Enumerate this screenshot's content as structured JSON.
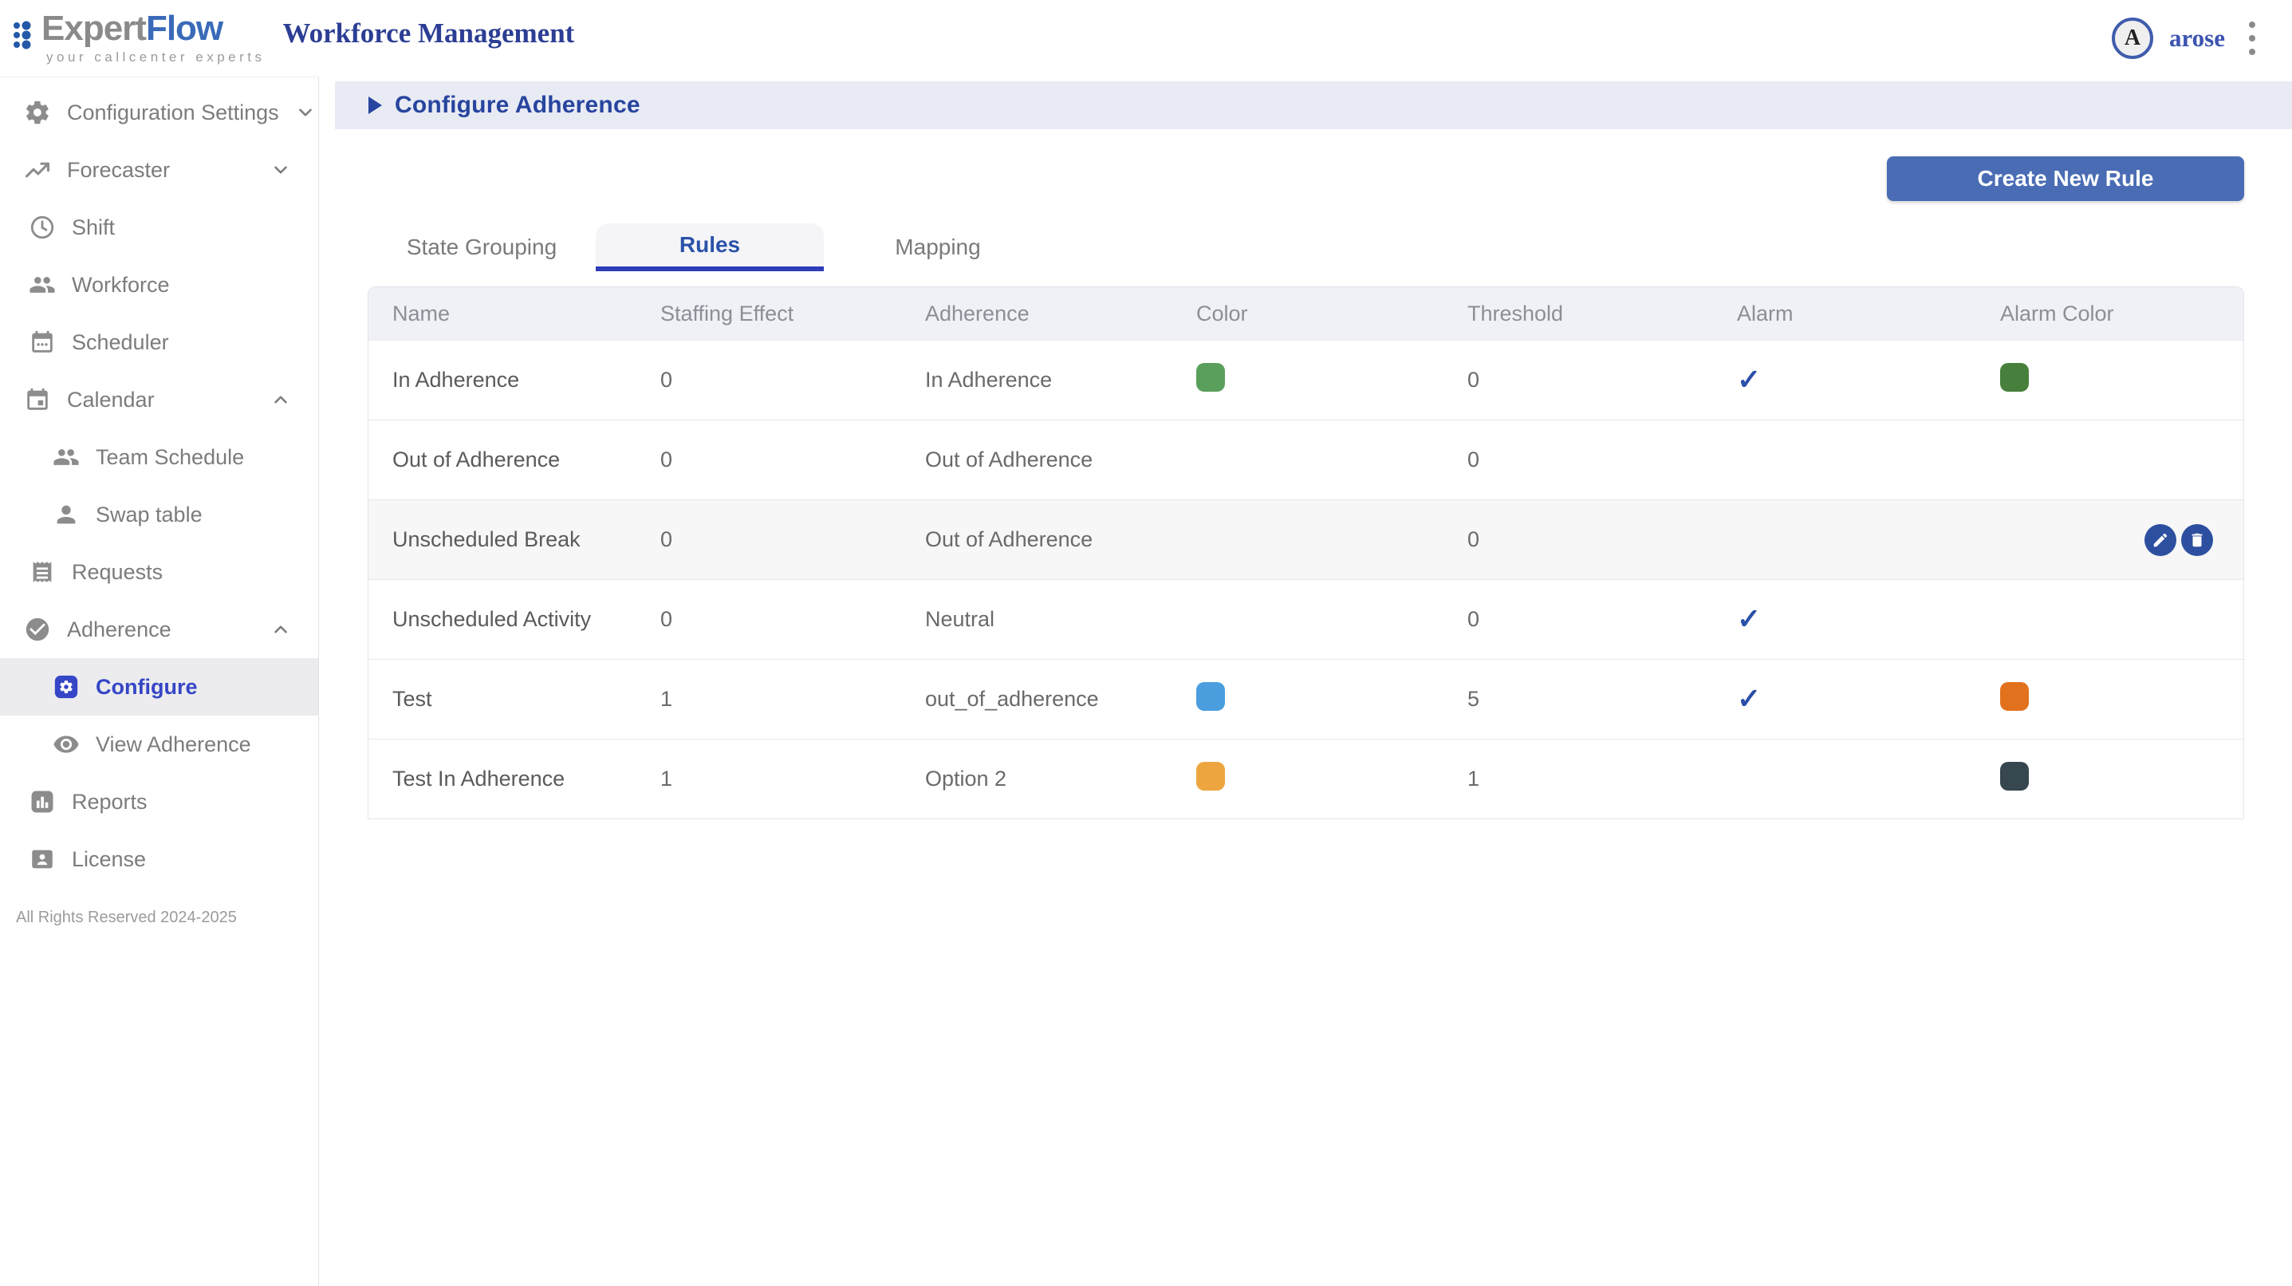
{
  "header": {
    "logo": {
      "expert": "Expert",
      "flow": "Flow",
      "tagline": "your callcenter experts"
    },
    "app_title": "Workforce Management",
    "user": {
      "initial": "A",
      "name": "arose"
    }
  },
  "sidebar": {
    "items": [
      {
        "label": "Configuration Settings",
        "icon": "gear",
        "level": 0,
        "chevron": "down",
        "active": false
      },
      {
        "label": "Forecaster",
        "icon": "trending-up",
        "level": 0,
        "chevron": "down",
        "active": false
      },
      {
        "label": "Shift",
        "icon": "clock",
        "level": 1,
        "chevron": null,
        "active": false
      },
      {
        "label": "Workforce",
        "icon": "people",
        "level": 1,
        "chevron": null,
        "active": false
      },
      {
        "label": "Scheduler",
        "icon": "calendar-dots",
        "level": 1,
        "chevron": null,
        "active": false
      },
      {
        "label": "Calendar",
        "icon": "calendar-square",
        "level": 0,
        "chevron": "up",
        "active": false
      },
      {
        "label": "Team Schedule",
        "icon": "people",
        "level": 2,
        "chevron": null,
        "active": false
      },
      {
        "label": "Swap table",
        "icon": "person",
        "level": 2,
        "chevron": null,
        "active": false
      },
      {
        "label": "Requests",
        "icon": "receipt",
        "level": 1,
        "chevron": null,
        "active": false
      },
      {
        "label": "Adherence",
        "icon": "check-circle",
        "level": 0,
        "chevron": "up",
        "active": false
      },
      {
        "label": "Configure",
        "icon": "gear-square",
        "level": 2,
        "chevron": null,
        "active": true
      },
      {
        "label": "View Adherence",
        "icon": "eye",
        "level": 2,
        "chevron": null,
        "active": false
      },
      {
        "label": "Reports",
        "icon": "bar-chart",
        "level": 1,
        "chevron": null,
        "active": false
      },
      {
        "label": "License",
        "icon": "badge",
        "level": 1,
        "chevron": null,
        "active": false
      }
    ],
    "footer": "All Rights Reserved 2024-2025"
  },
  "band": {
    "title": "Configure Adherence"
  },
  "toolbar": {
    "create_button": "Create New Rule"
  },
  "tabs": [
    {
      "label": "State Grouping",
      "active": false
    },
    {
      "label": "Rules",
      "active": true
    },
    {
      "label": "Mapping",
      "active": false
    }
  ],
  "table": {
    "columns": [
      "Name",
      "Staffing Effect",
      "Adherence",
      "Color",
      "Threshold",
      "Alarm",
      "Alarm Color"
    ],
    "rows": [
      {
        "name": "In Adherence",
        "staffing_effect": "0",
        "adherence": "In Adherence",
        "color": "#5aa05c",
        "threshold": "0",
        "alarm": true,
        "alarm_color": "#47803c",
        "actions": false,
        "highlighted": false
      },
      {
        "name": "Out of Adherence",
        "staffing_effect": "0",
        "adherence": "Out of Adherence",
        "color": "",
        "threshold": "0",
        "alarm": false,
        "alarm_color": "",
        "actions": false,
        "highlighted": false
      },
      {
        "name": "Unscheduled Break",
        "staffing_effect": "0",
        "adherence": "Out of Adherence",
        "color": "",
        "threshold": "0",
        "alarm": false,
        "alarm_color": "",
        "actions": true,
        "highlighted": true
      },
      {
        "name": "Unscheduled Activity",
        "staffing_effect": "0",
        "adherence": "Neutral",
        "color": "",
        "threshold": "0",
        "alarm": true,
        "alarm_color": "",
        "actions": false,
        "highlighted": false
      },
      {
        "name": "Test",
        "staffing_effect": "1",
        "adherence": "out_of_adherence",
        "color": "#4a9ede",
        "threshold": "5",
        "alarm": true,
        "alarm_color": "#e2711d",
        "actions": false,
        "highlighted": false
      },
      {
        "name": "Test In Adherence",
        "staffing_effect": "1",
        "adherence": "Option 2",
        "color": "#eda63f",
        "threshold": "1",
        "alarm": false,
        "alarm_color": "#37474f",
        "actions": false,
        "highlighted": false
      }
    ],
    "check_glyph": "✓"
  },
  "colors": {
    "accent": "#4a6cb4",
    "link_blue": "#2a52a8",
    "check": "#2b50a8",
    "tab_underline": "#2e3cb8",
    "active_item": "#3546c6",
    "action_button": "#2d4f9f",
    "logo_blue": "#2458a8"
  }
}
